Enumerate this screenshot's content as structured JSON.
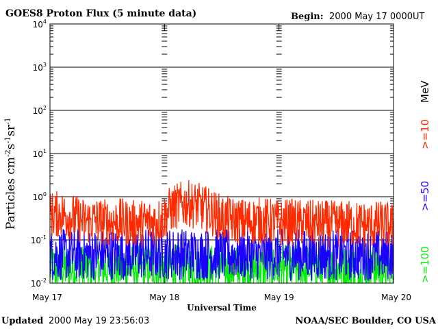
{
  "header": {
    "title": "GOES8 Proton Flux (5 minute data)",
    "begin_label": "Begin:",
    "begin_value": "2000 May 17 0000UT"
  },
  "footer": {
    "updated_label": "Updated",
    "updated_value": "2000 May 19 23:56:03",
    "credit": "NOAA/SEC Boulder, CO USA"
  },
  "chart_data": {
    "type": "line",
    "xlabel": "Universal Time",
    "ylabel_main": "Particles cm",
    "ylabel_exp1": "-2",
    "ylabel_mid1": "s",
    "ylabel_exp2": "-1",
    "ylabel_mid2": "sr",
    "ylabel_exp3": "-1",
    "y_scale": "log",
    "ylim": [
      0.01,
      10000
    ],
    "y_ticks": [
      {
        "base": "10",
        "exp": "-2",
        "value": 0.01
      },
      {
        "base": "10",
        "exp": "-1",
        "value": 0.1
      },
      {
        "base": "10",
        "exp": "0",
        "value": 1
      },
      {
        "base": "10",
        "exp": "1",
        "value": 10
      },
      {
        "base": "10",
        "exp": "2",
        "value": 100
      },
      {
        "base": "10",
        "exp": "3",
        "value": 1000
      },
      {
        "base": "10",
        "exp": "4",
        "value": 10000
      }
    ],
    "x_ticks": [
      "May 17",
      "May 18",
      "May 19",
      "May 20"
    ],
    "xlim_days": [
      0,
      3
    ],
    "grid": true,
    "energy_unit": "MeV",
    "series": [
      {
        "name": ">=10",
        "color": "#ff2a00",
        "anchors": [
          [
            0,
            0.38
          ],
          [
            0.1,
            0.4
          ],
          [
            0.2,
            0.33
          ],
          [
            0.3,
            0.27
          ],
          [
            0.4,
            0.28
          ],
          [
            0.5,
            0.26
          ],
          [
            0.6,
            0.27
          ],
          [
            0.7,
            0.24
          ],
          [
            0.8,
            0.25
          ],
          [
            0.9,
            0.26
          ],
          [
            0.98,
            0.3
          ],
          [
            1.05,
            0.5
          ],
          [
            1.12,
            0.62
          ],
          [
            1.2,
            0.7
          ],
          [
            1.3,
            0.6
          ],
          [
            1.4,
            0.45
          ],
          [
            1.5,
            0.32
          ],
          [
            1.6,
            0.28
          ],
          [
            1.7,
            0.26
          ],
          [
            1.8,
            0.28
          ],
          [
            1.9,
            0.27
          ],
          [
            2.0,
            0.25
          ],
          [
            2.1,
            0.26
          ],
          [
            2.2,
            0.25
          ],
          [
            2.3,
            0.24
          ],
          [
            2.4,
            0.24
          ],
          [
            2.5,
            0.23
          ],
          [
            2.6,
            0.24
          ],
          [
            2.7,
            0.23
          ],
          [
            2.8,
            0.22
          ],
          [
            2.9,
            0.23
          ],
          [
            3.0,
            0.2
          ]
        ],
        "spread": 0.55
      },
      {
        "name": ">=50",
        "color": "#1a00ff",
        "anchors": [
          [
            0,
            0.045
          ],
          [
            0.5,
            0.046
          ],
          [
            1.0,
            0.048
          ],
          [
            1.5,
            0.046
          ],
          [
            2.0,
            0.046
          ],
          [
            2.5,
            0.045
          ],
          [
            3.0,
            0.045
          ]
        ],
        "spread": 0.6
      },
      {
        "name": ">=100",
        "color": "#00ee00",
        "anchors": [
          [
            0,
            0.022
          ],
          [
            0.5,
            0.022
          ],
          [
            1.0,
            0.023
          ],
          [
            1.5,
            0.022
          ],
          [
            2.0,
            0.022
          ],
          [
            2.5,
            0.022
          ],
          [
            3.0,
            0.022
          ]
        ],
        "spread": 0.55
      }
    ]
  }
}
